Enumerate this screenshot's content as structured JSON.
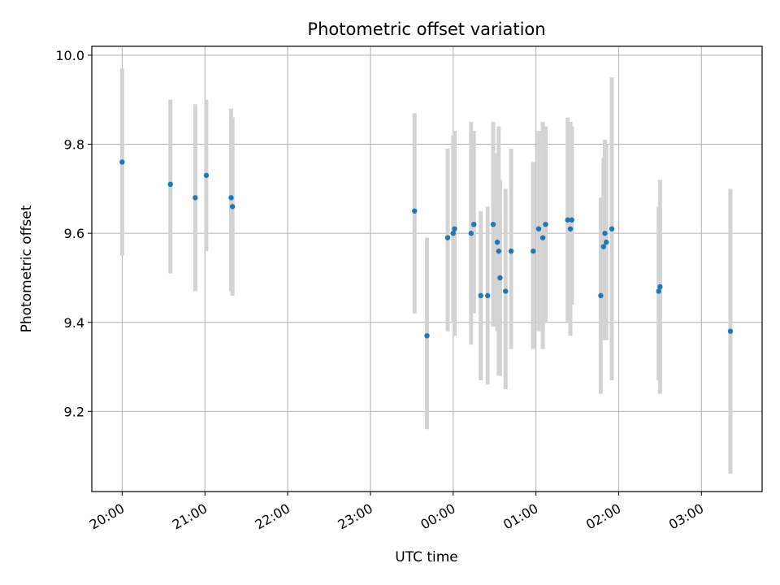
{
  "chart_data": {
    "type": "scatter",
    "title": "Photometric offset variation",
    "xlabel": "UTC time",
    "ylabel": "Photometric offset",
    "grid": true,
    "legend": "none",
    "x_axis": "time",
    "xlim": [
      "19:38",
      "03:44"
    ],
    "ylim": [
      9.02,
      10.02
    ],
    "x_ticks": [
      "20:00",
      "21:00",
      "22:00",
      "23:00",
      "00:00",
      "01:00",
      "02:00",
      "03:00"
    ],
    "y_ticks": [
      "9.2",
      "9.4",
      "9.6",
      "9.8",
      "10.0"
    ],
    "y_tick_values": [
      9.2,
      9.4,
      9.6,
      9.8,
      10.0
    ],
    "colors": {
      "point": "#1f77b4",
      "errorbar": "#d3d3d3",
      "grid": "#b0b0b0"
    },
    "points": [
      {
        "t": "20:00",
        "y": 9.76,
        "lo": 9.55,
        "hi": 9.97
      },
      {
        "t": "20:35",
        "y": 9.71,
        "lo": 9.51,
        "hi": 9.9
      },
      {
        "t": "20:53",
        "y": 9.68,
        "lo": 9.47,
        "hi": 9.89
      },
      {
        "t": "21:01",
        "y": 9.73,
        "lo": 9.56,
        "hi": 9.9
      },
      {
        "t": "21:19",
        "y": 9.68,
        "lo": 9.47,
        "hi": 9.88
      },
      {
        "t": "21:20",
        "y": 9.66,
        "lo": 9.46,
        "hi": 9.86
      },
      {
        "t": "23:32",
        "y": 9.65,
        "lo": 9.42,
        "hi": 9.87
      },
      {
        "t": "23:41",
        "y": 9.37,
        "lo": 9.16,
        "hi": 9.59
      },
      {
        "t": "23:56",
        "y": 9.59,
        "lo": 9.38,
        "hi": 9.79
      },
      {
        "t": "00:00",
        "y": 9.6,
        "lo": 9.4,
        "hi": 9.82
      },
      {
        "t": "00:01",
        "y": 9.61,
        "lo": 9.37,
        "hi": 9.83
      },
      {
        "t": "00:13",
        "y": 9.6,
        "lo": 9.35,
        "hi": 9.85
      },
      {
        "t": "00:15",
        "y": 9.62,
        "lo": 9.42,
        "hi": 9.83
      },
      {
        "t": "00:20",
        "y": 9.46,
        "lo": 9.27,
        "hi": 9.65
      },
      {
        "t": "00:25",
        "y": 9.46,
        "lo": 9.26,
        "hi": 9.66
      },
      {
        "t": "00:29",
        "y": 9.62,
        "lo": 9.39,
        "hi": 9.85
      },
      {
        "t": "00:32",
        "y": 9.58,
        "lo": 9.38,
        "hi": 9.78
      },
      {
        "t": "00:33",
        "y": 9.56,
        "lo": 9.28,
        "hi": 9.84
      },
      {
        "t": "00:34",
        "y": 9.5,
        "lo": 9.28,
        "hi": 9.72
      },
      {
        "t": "00:38",
        "y": 9.47,
        "lo": 9.25,
        "hi": 9.7
      },
      {
        "t": "00:42",
        "y": 9.56,
        "lo": 9.34,
        "hi": 9.79
      },
      {
        "t": "00:58",
        "y": 9.56,
        "lo": 9.34,
        "hi": 9.76
      },
      {
        "t": "01:02",
        "y": 9.61,
        "lo": 9.38,
        "hi": 9.83
      },
      {
        "t": "01:05",
        "y": 9.59,
        "lo": 9.34,
        "hi": 9.85
      },
      {
        "t": "01:07",
        "y": 9.62,
        "lo": 9.4,
        "hi": 9.84
      },
      {
        "t": "01:23",
        "y": 9.63,
        "lo": 9.4,
        "hi": 9.86
      },
      {
        "t": "01:25",
        "y": 9.61,
        "lo": 9.37,
        "hi": 9.85
      },
      {
        "t": "01:26",
        "y": 9.63,
        "lo": 9.44,
        "hi": 9.84
      },
      {
        "t": "01:47",
        "y": 9.46,
        "lo": 9.24,
        "hi": 9.68
      },
      {
        "t": "01:49",
        "y": 9.57,
        "lo": 9.36,
        "hi": 9.77
      },
      {
        "t": "01:50",
        "y": 9.6,
        "lo": 9.38,
        "hi": 9.81
      },
      {
        "t": "01:51",
        "y": 9.58,
        "lo": 9.36,
        "hi": 9.8
      },
      {
        "t": "01:55",
        "y": 9.61,
        "lo": 9.27,
        "hi": 9.95
      },
      {
        "t": "02:29",
        "y": 9.47,
        "lo": 9.27,
        "hi": 9.66
      },
      {
        "t": "02:30",
        "y": 9.48,
        "lo": 9.24,
        "hi": 9.72
      },
      {
        "t": "03:21",
        "y": 9.38,
        "lo": 9.06,
        "hi": 9.7
      }
    ]
  }
}
